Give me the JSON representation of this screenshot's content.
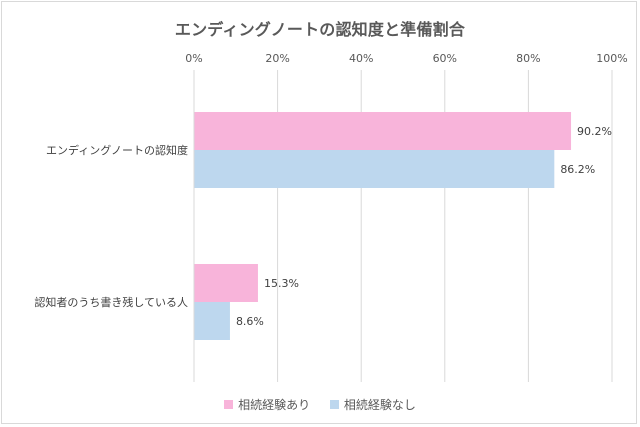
{
  "chart_data": {
    "type": "bar",
    "orientation": "horizontal",
    "title": "エンディングノートの認知度と準備割合",
    "categories": [
      "エンディングノートの認知度",
      "認知者のうち書き残している人"
    ],
    "series": [
      {
        "name": "相続経験あり",
        "values": [
          90.2,
          15.3
        ],
        "labels": [
          "90.2%",
          "15.3%"
        ],
        "color": "#f8b4da"
      },
      {
        "name": "相続経験なし",
        "values": [
          86.2,
          8.6
        ],
        "labels": [
          "86.2%",
          "8.6%"
        ],
        "color": "#bdd7ee"
      }
    ],
    "xlim": [
      0,
      100
    ],
    "xticks": [
      0,
      20,
      40,
      60,
      80,
      100
    ],
    "xtick_labels": [
      "0%",
      "20%",
      "40%",
      "60%",
      "80%",
      "100%"
    ],
    "x_axis_position": "top",
    "grid": true,
    "legend_position": "bottom"
  }
}
